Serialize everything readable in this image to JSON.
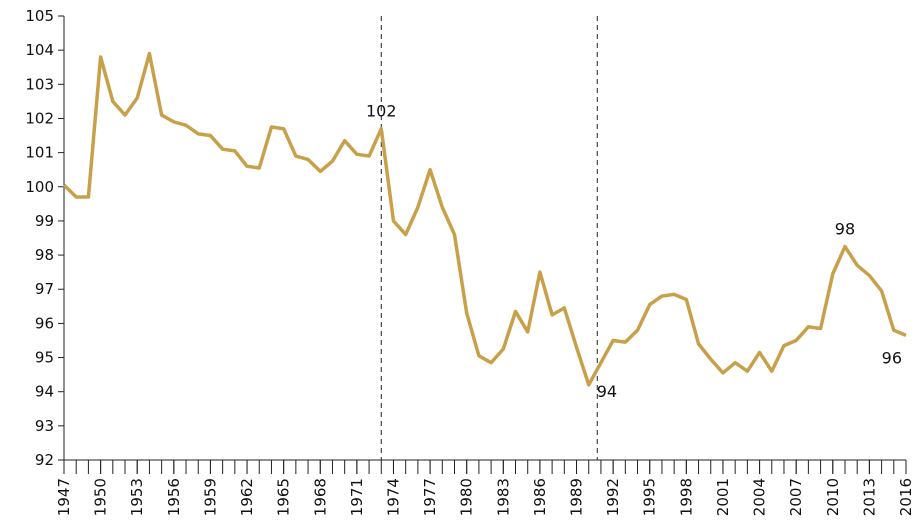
{
  "chart_data": {
    "type": "line",
    "x": [
      1947,
      1948,
      1949,
      1950,
      1951,
      1952,
      1953,
      1954,
      1955,
      1956,
      1957,
      1958,
      1959,
      1960,
      1961,
      1962,
      1963,
      1964,
      1965,
      1966,
      1967,
      1968,
      1969,
      1970,
      1971,
      1972,
      1973,
      1974,
      1975,
      1976,
      1977,
      1978,
      1979,
      1980,
      1981,
      1982,
      1983,
      1984,
      1985,
      1986,
      1987,
      1988,
      1989,
      1990,
      1991,
      1992,
      1993,
      1994,
      1995,
      1996,
      1997,
      1998,
      1999,
      2000,
      2001,
      2002,
      2003,
      2004,
      2005,
      2006,
      2007,
      2008,
      2009,
      2010,
      2011,
      2012,
      2013,
      2014,
      2015,
      2016
    ],
    "values": [
      100.05,
      99.7,
      99.7,
      103.8,
      102.5,
      102.1,
      102.6,
      103.9,
      102.1,
      101.9,
      101.8,
      101.55,
      101.5,
      101.1,
      101.05,
      100.6,
      100.55,
      101.75,
      101.7,
      100.9,
      100.8,
      100.45,
      100.75,
      101.35,
      100.95,
      100.9,
      101.7,
      99.0,
      98.6,
      99.4,
      100.5,
      99.4,
      98.6,
      96.3,
      95.05,
      94.85,
      95.25,
      96.35,
      95.75,
      97.5,
      96.25,
      96.45,
      95.3,
      94.2,
      94.85,
      95.5,
      95.45,
      95.8,
      96.55,
      96.8,
      96.85,
      96.7,
      95.4,
      94.95,
      94.55,
      94.85,
      94.6,
      95.15,
      94.6,
      95.35,
      95.5,
      95.9,
      95.85,
      97.45,
      98.25,
      97.7,
      97.4,
      96.95,
      95.8,
      95.65
    ],
    "value_labels": [
      null,
      null,
      null,
      null,
      null,
      null,
      null,
      null,
      null,
      null,
      null,
      null,
      null,
      null,
      null,
      null,
      null,
      null,
      null,
      null,
      null,
      null,
      null,
      null,
      null,
      null,
      "102",
      null,
      null,
      null,
      null,
      null,
      null,
      null,
      null,
      null,
      null,
      null,
      null,
      null,
      null,
      null,
      null,
      "94",
      null,
      null,
      null,
      null,
      null,
      null,
      null,
      null,
      null,
      null,
      null,
      null,
      null,
      null,
      null,
      null,
      null,
      null,
      null,
      null,
      "98",
      null,
      null,
      null,
      null,
      "96"
    ],
    "color": "#c9a04a",
    "xlim": [
      1947,
      2016
    ],
    "xticks": [
      1947,
      1950,
      1953,
      1956,
      1959,
      1962,
      1965,
      1968,
      1971,
      1974,
      1977,
      1980,
      1983,
      1986,
      1989,
      1992,
      1995,
      1998,
      2001,
      2004,
      2007,
      2010,
      2013,
      2016
    ],
    "ylim": [
      92,
      105
    ],
    "yticks": [
      92,
      93,
      94,
      95,
      96,
      97,
      98,
      99,
      100,
      101,
      102,
      103,
      104,
      105
    ],
    "vlines": [
      1973,
      1990.7
    ],
    "grid": false
  }
}
